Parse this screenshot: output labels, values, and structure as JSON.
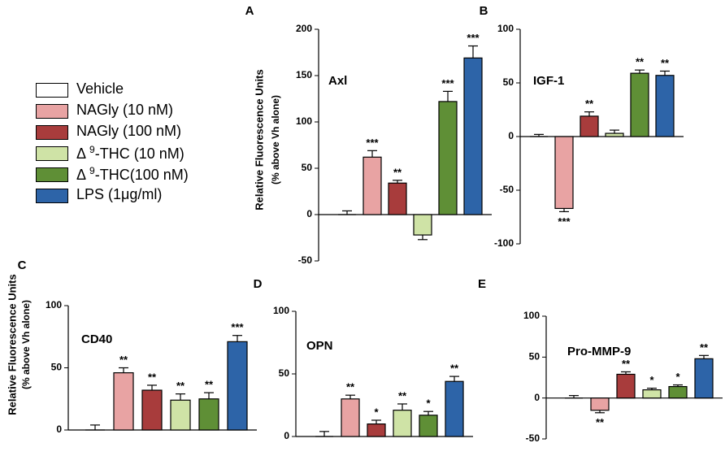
{
  "legend": [
    {
      "label": "Vehicle",
      "color": "#ffffff"
    },
    {
      "label": "NAGly (10 nM)",
      "color": "#e8a3a3"
    },
    {
      "label": "NAGly (100 nM)",
      "color": "#a83c3c"
    },
    {
      "prefix": "Δ ",
      "sup": "9",
      "suffix": "-THC (10 nM)",
      "color": "#cfe3a6"
    },
    {
      "prefix": "Δ ",
      "sup": "9",
      "suffix": "-THC(100 nM)",
      "color": "#5f8f36"
    },
    {
      "label": "LPS (1μg/ml)",
      "color": "#2d64a8"
    }
  ],
  "chart_data": [
    {
      "type": "bar",
      "panel": "A",
      "title": "Axl",
      "ylabel": "Relative Fluorescence Units",
      "ylabel2": "(% above Vh alone)",
      "ylim": [
        -50,
        200
      ],
      "yticks": [
        -50,
        0,
        50,
        100,
        150,
        200
      ],
      "categories": [
        "Vehicle",
        "NAGly (10 nM)",
        "NAGly (100 nM)",
        "Δ9-THC (10 nM)",
        "Δ9-THC (100 nM)",
        "LPS (1μg/ml)"
      ],
      "values": [
        0,
        62,
        34,
        -22,
        122,
        169
      ],
      "errors": [
        4,
        7,
        3,
        5,
        11,
        13
      ],
      "significance": [
        "",
        "***",
        "**",
        "",
        "***",
        "***"
      ]
    },
    {
      "type": "bar",
      "panel": "B",
      "title": "IGF-1",
      "ylim": [
        -100,
        100
      ],
      "yticks": [
        -100,
        -50,
        0,
        50,
        100
      ],
      "categories": [
        "Vehicle",
        "NAGly (10 nM)",
        "NAGly (100 nM)",
        "Δ9-THC (10 nM)",
        "Δ9-THC (100 nM)",
        "LPS (1μg/ml)"
      ],
      "values": [
        0,
        -67,
        19,
        3,
        59,
        57
      ],
      "errors": [
        2,
        3,
        4,
        3,
        3,
        4
      ],
      "significance": [
        "",
        "***",
        "**",
        "",
        "**",
        "**"
      ]
    },
    {
      "type": "bar",
      "panel": "C",
      "title": "CD40",
      "ylabel": "Relative Fluorescence Units",
      "ylabel2": "(% above Vh alone)",
      "ylim": [
        0,
        100
      ],
      "yticks": [
        0,
        50,
        100
      ],
      "categories": [
        "Vehicle",
        "NAGly (10 nM)",
        "NAGly (100 nM)",
        "Δ9-THC (10 nM)",
        "Δ9-THC (100 nM)",
        "LPS (1μg/ml)"
      ],
      "values": [
        0,
        46,
        32,
        24,
        25,
        71
      ],
      "errors": [
        4,
        4,
        4,
        5,
        5,
        5
      ],
      "significance": [
        "",
        "**",
        "**",
        "**",
        "**",
        "***"
      ]
    },
    {
      "type": "bar",
      "panel": "D",
      "title": "OPN",
      "ylim": [
        0,
        100
      ],
      "yticks": [
        0,
        50,
        100
      ],
      "categories": [
        "Vehicle",
        "NAGly (10 nM)",
        "NAGly (100 nM)",
        "Δ9-THC (10 nM)",
        "Δ9-THC (100 nM)",
        "LPS (1μg/ml)"
      ],
      "values": [
        0,
        30,
        10,
        21,
        17,
        44
      ],
      "errors": [
        4,
        3,
        3,
        5,
        3,
        4
      ],
      "significance": [
        "",
        "**",
        "*",
        "**",
        "*",
        "**"
      ]
    },
    {
      "type": "bar",
      "panel": "E",
      "title": "Pro-MMP-9",
      "ylim": [
        -50,
        100
      ],
      "yticks": [
        -50,
        0,
        50,
        100
      ],
      "categories": [
        "Vehicle",
        "NAGly (10 nM)",
        "NAGly (100 nM)",
        "Δ9-THC (10 nM)",
        "Δ9-THC (100 nM)",
        "LPS (1μg/ml)"
      ],
      "values": [
        0,
        -15,
        29,
        10,
        14,
        48
      ],
      "errors": [
        3,
        3,
        3,
        2,
        2,
        4
      ],
      "significance": [
        "",
        "**",
        "**",
        "*",
        "*",
        "**"
      ]
    }
  ]
}
